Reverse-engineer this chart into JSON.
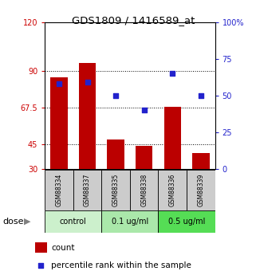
{
  "title": "GDS1809 / 1416589_at",
  "samples": [
    "GSM88334",
    "GSM88337",
    "GSM88335",
    "GSM88338",
    "GSM88336",
    "GSM88339"
  ],
  "bar_values": [
    86,
    95,
    48,
    44,
    68,
    40
  ],
  "scatter_pct": [
    58,
    59,
    50,
    40,
    65,
    50
  ],
  "ylim_left": [
    30,
    120
  ],
  "ylim_right": [
    0,
    100
  ],
  "yticks_left": [
    30,
    45,
    67.5,
    90,
    120
  ],
  "ytick_labels_left": [
    "30",
    "45",
    "67.5",
    "90",
    "120"
  ],
  "yticks_right": [
    0,
    25,
    50,
    75,
    100
  ],
  "ytick_labels_right": [
    "0",
    "25",
    "50",
    "75",
    "100%"
  ],
  "hlines": [
    45,
    67.5,
    90
  ],
  "bar_color": "#BB0000",
  "scatter_color": "#2222CC",
  "bar_width": 0.6,
  "dose_groups": [
    {
      "label": "control",
      "indices": [
        0,
        1
      ],
      "color": "#ccf0cc"
    },
    {
      "label": "0.1 ug/ml",
      "indices": [
        2,
        3
      ],
      "color": "#aae8aa"
    },
    {
      "label": "0.5 ug/ml",
      "indices": [
        4,
        5
      ],
      "color": "#55dd55"
    }
  ],
  "dose_label": "dose",
  "legend_count_label": "count",
  "legend_pct_label": "percentile rank within the sample",
  "left_tick_color": "#CC0000",
  "right_tick_color": "#2222CC",
  "sample_box_color": "#cccccc",
  "bar_bottom": 30
}
